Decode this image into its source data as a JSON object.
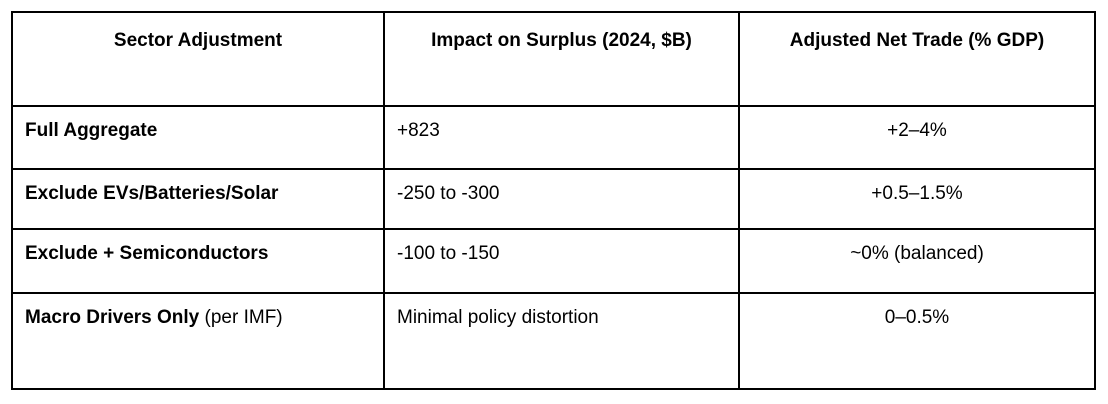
{
  "table": {
    "border_color": "#000000",
    "text_color": "#000000",
    "background_color": "#ffffff",
    "headers": {
      "sector": "Sector Adjustment",
      "impact": "Impact on Surplus (2024, $B)",
      "net_trade": "Adjusted Net Trade (% GDP)"
    },
    "rows": [
      {
        "sector_bold": "Full Aggregate",
        "sector_normal": "",
        "impact": "+823",
        "net_trade": "+2–4%"
      },
      {
        "sector_bold": "Exclude EVs/Batteries/Solar",
        "sector_normal": "",
        "impact": "-250 to -300",
        "net_trade": "+0.5–1.5%"
      },
      {
        "sector_bold": "Exclude + Semiconductors",
        "sector_normal": "",
        "impact": "-100 to -150",
        "net_trade": "~0% (balanced)"
      },
      {
        "sector_bold": "Macro Drivers Only",
        "sector_normal": " (per IMF)",
        "impact": "Minimal policy distortion",
        "net_trade": "0–0.5%"
      }
    ]
  }
}
